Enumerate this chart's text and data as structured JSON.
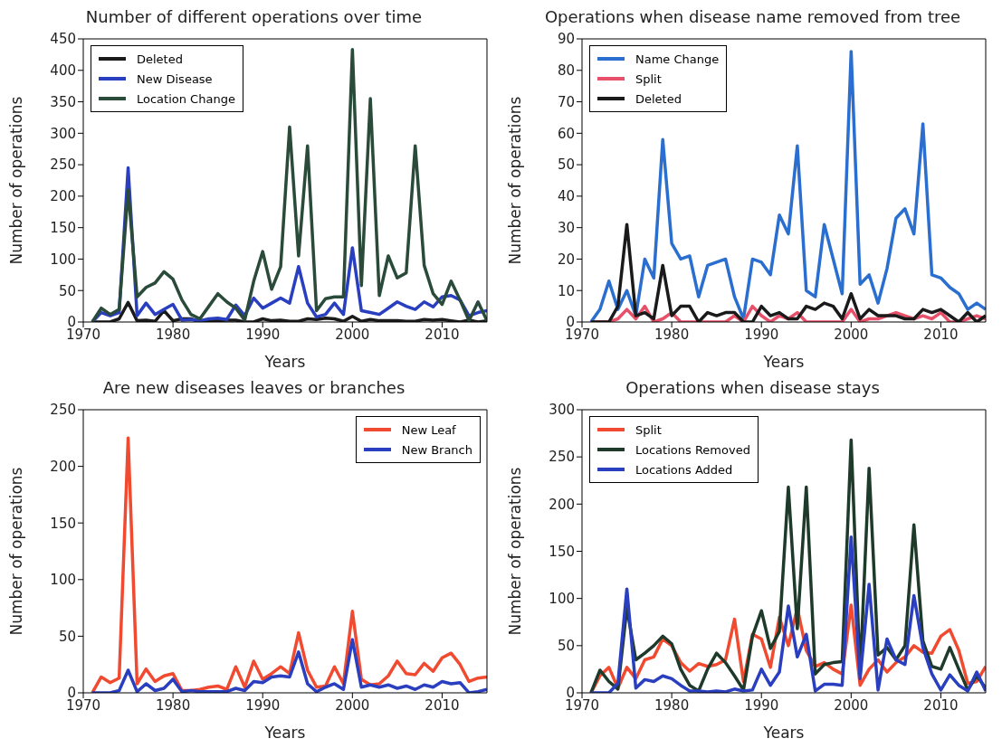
{
  "chart_data": [
    {
      "type": "line",
      "title": "Number of different operations over time",
      "xlabel": "Years",
      "ylabel": "Number of operations",
      "legend": "top left",
      "x": [
        1971,
        1972,
        1973,
        1974,
        1975,
        1976,
        1977,
        1978,
        1979,
        1980,
        1981,
        1982,
        1983,
        1984,
        1985,
        1986,
        1987,
        1988,
        1989,
        1990,
        1991,
        1992,
        1993,
        1994,
        1995,
        1996,
        1997,
        1998,
        1999,
        2000,
        2001,
        2002,
        2003,
        2004,
        2005,
        2006,
        2007,
        2008,
        2009,
        2010,
        2011,
        2012,
        2013,
        2014,
        2015
      ],
      "xlim": [
        1970,
        2015
      ],
      "xticks": [
        1970,
        1980,
        1990,
        2000,
        2010
      ],
      "ylim": [
        0,
        450
      ],
      "yticks": [
        0,
        50,
        100,
        150,
        200,
        250,
        300,
        350,
        400,
        450
      ],
      "series": [
        {
          "name": "Deleted",
          "color": "#1a1a1a",
          "values": [
            0,
            0,
            0,
            5,
            31,
            2,
            3,
            1,
            18,
            2,
            5,
            5,
            0,
            3,
            2,
            3,
            3,
            0,
            0,
            5,
            2,
            3,
            1,
            1,
            5,
            4,
            6,
            5,
            1,
            9,
            1,
            4,
            2,
            2,
            2,
            1,
            1,
            4,
            3,
            4,
            2,
            0,
            3,
            0,
            2
          ]
        },
        {
          "name": "New Disease",
          "color": "#2a3fbf",
          "values": [
            0,
            15,
            10,
            15,
            245,
            10,
            30,
            12,
            20,
            28,
            3,
            4,
            2,
            5,
            6,
            4,
            27,
            10,
            38,
            22,
            30,
            38,
            30,
            88,
            30,
            8,
            12,
            30,
            12,
            118,
            18,
            15,
            12,
            22,
            32,
            25,
            20,
            32,
            24,
            40,
            42,
            35,
            10,
            15,
            18
          ]
        },
        {
          "name": "Location Change",
          "color": "#2a4a3a",
          "values": [
            0,
            22,
            12,
            20,
            210,
            40,
            55,
            62,
            80,
            68,
            35,
            12,
            5,
            25,
            45,
            32,
            22,
            3,
            65,
            112,
            52,
            88,
            310,
            105,
            280,
            18,
            37,
            40,
            40,
            433,
            58,
            355,
            42,
            105,
            70,
            78,
            280,
            90,
            45,
            28,
            65,
            35,
            2,
            32,
            2
          ]
        }
      ]
    },
    {
      "type": "line",
      "title": "Operations when disease name removed from tree",
      "xlabel": "Years",
      "ylabel": "Number of operations",
      "legend": "top left",
      "x": [
        1971,
        1972,
        1973,
        1974,
        1975,
        1976,
        1977,
        1978,
        1979,
        1980,
        1981,
        1982,
        1983,
        1984,
        1985,
        1986,
        1987,
        1988,
        1989,
        1990,
        1991,
        1992,
        1993,
        1994,
        1995,
        1996,
        1997,
        1998,
        1999,
        2000,
        2001,
        2002,
        2003,
        2004,
        2005,
        2006,
        2007,
        2008,
        2009,
        2010,
        2011,
        2012,
        2013,
        2014,
        2015
      ],
      "xlim": [
        1970,
        2015
      ],
      "xticks": [
        1970,
        1980,
        1990,
        2000,
        2010
      ],
      "ylim": [
        0,
        90
      ],
      "yticks": [
        0,
        10,
        20,
        30,
        40,
        50,
        60,
        70,
        80,
        90
      ],
      "series": [
        {
          "name": "Name Change",
          "color": "#2a6fd0",
          "values": [
            0,
            4,
            13,
            4,
            10,
            2,
            20,
            14,
            58,
            25,
            20,
            21,
            8,
            18,
            19,
            20,
            8,
            1,
            20,
            19,
            15,
            34,
            28,
            56,
            10,
            8,
            31,
            20,
            9,
            86,
            12,
            15,
            6,
            17,
            33,
            36,
            28,
            63,
            15,
            14,
            11,
            9,
            4,
            6,
            4
          ]
        },
        {
          "name": "Split",
          "color": "#e8506a",
          "values": [
            0,
            0,
            0,
            1,
            4,
            1,
            5,
            0,
            1,
            3,
            0,
            0,
            0,
            0,
            0,
            0,
            2,
            0,
            5,
            2,
            0,
            2,
            1,
            3,
            0,
            0,
            0,
            0,
            0,
            4,
            0,
            1,
            1,
            2,
            3,
            2,
            1,
            2,
            1,
            3,
            0,
            0,
            1,
            2,
            1
          ]
        },
        {
          "name": "Deleted",
          "color": "#1a1a1a",
          "values": [
            0,
            0,
            0,
            5,
            31,
            2,
            3,
            1,
            18,
            2,
            5,
            5,
            0,
            3,
            2,
            3,
            3,
            0,
            0,
            5,
            2,
            3,
            1,
            1,
            5,
            4,
            6,
            5,
            1,
            9,
            1,
            4,
            2,
            2,
            2,
            1,
            1,
            4,
            3,
            4,
            2,
            0,
            3,
            0,
            2
          ]
        }
      ]
    },
    {
      "type": "line",
      "title": "Are new diseases leaves or branches",
      "xlabel": "Years",
      "ylabel": "Number of operations",
      "legend": "top right",
      "x": [
        1971,
        1972,
        1973,
        1974,
        1975,
        1976,
        1977,
        1978,
        1979,
        1980,
        1981,
        1982,
        1983,
        1984,
        1985,
        1986,
        1987,
        1988,
        1989,
        1990,
        1991,
        1992,
        1993,
        1994,
        1995,
        1996,
        1997,
        1998,
        1999,
        2000,
        2001,
        2002,
        2003,
        2004,
        2005,
        2006,
        2007,
        2008,
        2009,
        2010,
        2011,
        2012,
        2013,
        2014,
        2015
      ],
      "xlim": [
        1970,
        2015
      ],
      "xticks": [
        1970,
        1980,
        1990,
        2000,
        2010
      ],
      "ylim": [
        0,
        250
      ],
      "yticks": [
        0,
        50,
        100,
        150,
        200,
        250
      ],
      "series": [
        {
          "name": "New Leaf",
          "color": "#f04a30",
          "values": [
            0,
            14,
            9,
            13,
            225,
            8,
            21,
            10,
            15,
            17,
            2,
            2,
            3,
            5,
            6,
            3,
            23,
            5,
            28,
            12,
            17,
            23,
            17,
            53,
            20,
            5,
            6,
            23,
            8,
            72,
            12,
            7,
            8,
            15,
            28,
            17,
            16,
            26,
            19,
            31,
            35,
            25,
            10,
            13,
            14
          ]
        },
        {
          "name": "New Branch",
          "color": "#2a3fbf",
          "values": [
            0,
            0,
            0,
            2,
            20,
            1,
            8,
            2,
            4,
            12,
            1,
            2,
            1,
            1,
            1,
            1,
            4,
            2,
            10,
            9,
            14,
            15,
            14,
            36,
            8,
            1,
            5,
            8,
            3,
            47,
            5,
            7,
            5,
            7,
            4,
            6,
            3,
            7,
            5,
            10,
            8,
            9,
            0,
            1,
            3
          ]
        }
      ]
    },
    {
      "type": "line",
      "title": "Operations when disease stays",
      "xlabel": "Years",
      "ylabel": "Number of operations",
      "legend": "top left",
      "x": [
        1971,
        1972,
        1973,
        1974,
        1975,
        1976,
        1977,
        1978,
        1979,
        1980,
        1981,
        1982,
        1983,
        1984,
        1985,
        1986,
        1987,
        1988,
        1989,
        1990,
        1991,
        1992,
        1993,
        1994,
        1995,
        1996,
        1997,
        1998,
        1999,
        2000,
        2001,
        2002,
        2003,
        2004,
        2005,
        2006,
        2007,
        2008,
        2009,
        2010,
        2011,
        2012,
        2013,
        2014,
        2015
      ],
      "xlim": [
        1970,
        2015
      ],
      "xticks": [
        1970,
        1980,
        1990,
        2000,
        2010
      ],
      "ylim": [
        0,
        300
      ],
      "yticks": [
        0,
        50,
        100,
        150,
        200,
        250,
        300
      ],
      "series": [
        {
          "name": "Split",
          "color": "#f04a30",
          "values": [
            0,
            18,
            27,
            5,
            27,
            15,
            35,
            38,
            57,
            50,
            32,
            23,
            31,
            28,
            30,
            35,
            78,
            12,
            62,
            57,
            27,
            80,
            50,
            90,
            45,
            28,
            32,
            25,
            20,
            93,
            8,
            25,
            35,
            22,
            32,
            38,
            50,
            43,
            42,
            60,
            67,
            45,
            10,
            12,
            28
          ]
        },
        {
          "name": "Locations Removed",
          "color": "#1e3a2a",
          "values": [
            0,
            24,
            12,
            4,
            90,
            35,
            42,
            50,
            60,
            52,
            25,
            8,
            2,
            25,
            42,
            32,
            18,
            3,
            60,
            87,
            47,
            65,
            218,
            68,
            218,
            20,
            30,
            32,
            33,
            268,
            20,
            238,
            40,
            48,
            35,
            50,
            178,
            55,
            28,
            25,
            48,
            25,
            3,
            18,
            5
          ]
        },
        {
          "name": "Locations Added",
          "color": "#2a3fbf",
          "values": [
            0,
            0,
            0,
            10,
            110,
            5,
            14,
            12,
            18,
            15,
            8,
            2,
            2,
            1,
            2,
            1,
            4,
            2,
            3,
            25,
            8,
            22,
            92,
            38,
            62,
            2,
            9,
            9,
            8,
            165,
            15,
            115,
            3,
            57,
            35,
            30,
            103,
            48,
            20,
            3,
            19,
            8,
            2,
            22,
            2
          ]
        }
      ]
    }
  ]
}
